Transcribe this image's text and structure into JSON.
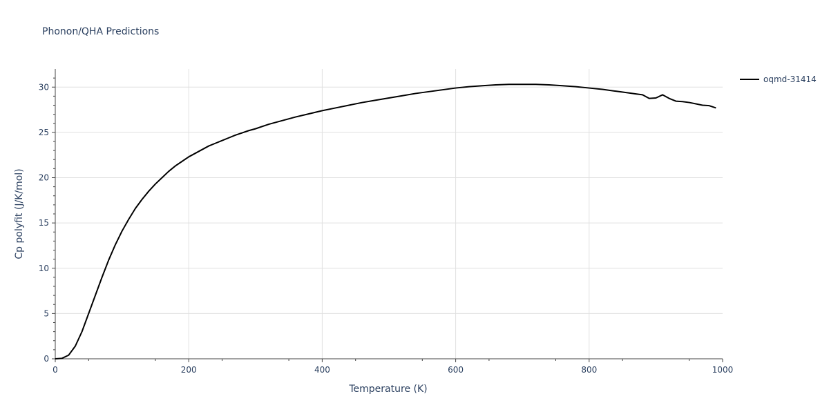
{
  "chart_data": {
    "type": "line",
    "title": "Phonon/QHA Predictions",
    "xlabel": "Temperature (K)",
    "ylabel": "Cp polyfit (J/K/mol)",
    "xlim": [
      0,
      1000
    ],
    "ylim": [
      0,
      32
    ],
    "xticks": [
      0,
      200,
      400,
      600,
      800,
      1000
    ],
    "yticks": [
      0,
      5,
      10,
      15,
      20,
      25,
      30
    ],
    "grid": true,
    "legend_position": "top-right",
    "series": [
      {
        "name": "oqmd-31414",
        "color": "#000000",
        "x": [
          0,
          10,
          20,
          30,
          40,
          50,
          60,
          70,
          80,
          90,
          100,
          110,
          120,
          130,
          140,
          150,
          160,
          170,
          180,
          190,
          200,
          210,
          220,
          230,
          240,
          250,
          260,
          270,
          280,
          290,
          300,
          320,
          340,
          360,
          380,
          400,
          420,
          440,
          460,
          480,
          500,
          520,
          540,
          560,
          580,
          600,
          620,
          640,
          660,
          680,
          700,
          720,
          740,
          760,
          780,
          800,
          820,
          840,
          860,
          870,
          880,
          890,
          900,
          910,
          920,
          930,
          940,
          950,
          960,
          970,
          980,
          990
        ],
        "y": [
          0,
          0.05,
          0.4,
          1.4,
          3.0,
          5.0,
          7.0,
          9.0,
          10.9,
          12.6,
          14.1,
          15.4,
          16.6,
          17.6,
          18.5,
          19.3,
          20.0,
          20.7,
          21.3,
          21.8,
          22.3,
          22.7,
          23.1,
          23.5,
          23.8,
          24.1,
          24.4,
          24.7,
          24.95,
          25.2,
          25.4,
          25.9,
          26.3,
          26.7,
          27.05,
          27.4,
          27.7,
          28.0,
          28.3,
          28.55,
          28.8,
          29.05,
          29.3,
          29.5,
          29.7,
          29.9,
          30.05,
          30.15,
          30.25,
          30.3,
          30.3,
          30.3,
          30.25,
          30.15,
          30.05,
          29.9,
          29.75,
          29.55,
          29.35,
          29.25,
          29.15,
          28.75,
          28.8,
          29.15,
          28.75,
          28.45,
          28.4,
          28.3,
          28.15,
          28.0,
          27.95,
          27.7
        ]
      }
    ]
  }
}
